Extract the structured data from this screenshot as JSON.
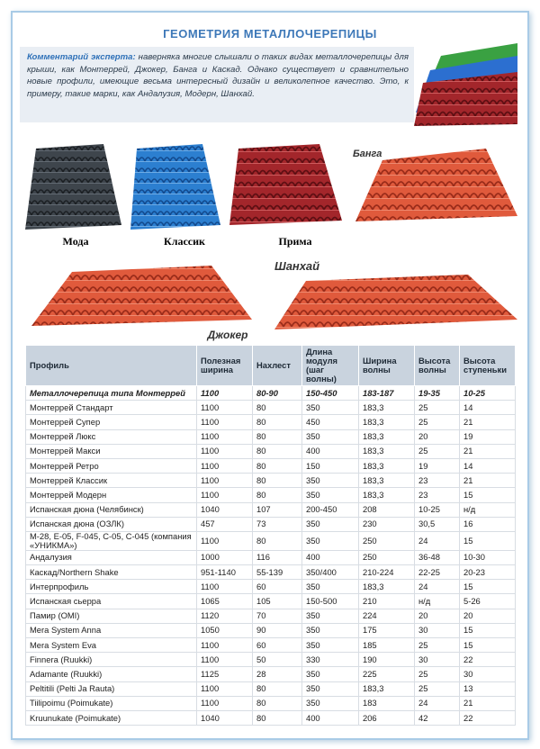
{
  "header": {
    "title": "ГЕОМЕТРИЯ МЕТАЛЛОЧЕРЕПИЦЫ"
  },
  "comment": {
    "label": "Комментарий эксперта:",
    "text": "наверняка многие слышали о таких видах металлочерепицы для крыши, как Монтеррей, Джокер, Банга и Каскад. Однако существует и сравнительно новые профили, имеющие весьма интересный дизайн и великолепное качество. Это, к примеру, такие марки, как Андалузия, Модерн, Шанхай."
  },
  "images": {
    "labels": [
      "Мода",
      "Классик",
      "Прима",
      "Банга",
      "Шанхай",
      "Джокер"
    ]
  },
  "table": {
    "header": [
      "Профиль",
      "Полезная ширина",
      "Нахлест",
      "Длина модуля (шаг волны)",
      "Ширина волны",
      "Высота волны",
      "Высота ступеньки"
    ],
    "rows": [
      [
        "Металлочерепица типа Монтеррей",
        "1100",
        "80-90",
        "150-450",
        "183-187",
        "19-35",
        "10-25"
      ],
      [
        "Монтеррей Стандарт",
        "1100",
        "80",
        "350",
        "183,3",
        "25",
        "14"
      ],
      [
        "Монтеррей Супер",
        "1100",
        "80",
        "450",
        "183,3",
        "25",
        "21"
      ],
      [
        "Монтеррей Люкс",
        "1100",
        "80",
        "350",
        "183,3",
        "20",
        "19"
      ],
      [
        "Монтеррей Макси",
        "1100",
        "80",
        "400",
        "183,3",
        "25",
        "21"
      ],
      [
        "Монтеррей Ретро",
        "1100",
        "80",
        "150",
        "183,3",
        "19",
        "14"
      ],
      [
        "Монтеррей Классик",
        "1100",
        "80",
        "350",
        "183,3",
        "23",
        "21"
      ],
      [
        "Монтеррей Модерн",
        "1100",
        "80",
        "350",
        "183,3",
        "23",
        "15"
      ],
      [
        "Испанская дюна (Челябинск)",
        "1040",
        "107",
        "200-450",
        "208",
        "10-25",
        "н/д"
      ],
      [
        "Испанская дюна (ОЗЛК)",
        "457",
        "73",
        "350",
        "230",
        "30,5",
        "16"
      ],
      [
        "M-28, E-05, F-045, C-05, C-045 (компания «УНИКМА»)",
        "1100",
        "80",
        "350",
        "250",
        "24",
        "15"
      ],
      [
        "Андалузия",
        "1000",
        "116",
        "400",
        "250",
        "36-48",
        "10-30"
      ],
      [
        "Каскад/Northern Shake",
        "951-1140",
        "55-139",
        "350/400",
        "210-224",
        "22-25",
        "20-23"
      ],
      [
        "Интерпрофиль",
        "1100",
        "60",
        "350",
        "183,3",
        "24",
        "15"
      ],
      [
        "Испанская сьерра",
        "1065",
        "105",
        "150-500",
        "210",
        "н/д",
        "5-26"
      ],
      [
        "Памир (OMI)",
        "1120",
        "70",
        "350",
        "224",
        "20",
        "20"
      ],
      [
        "Mera System Anna",
        "1050",
        "90",
        "350",
        "175",
        "30",
        "15"
      ],
      [
        "Mera System Eva",
        "1100",
        "60",
        "350",
        "185",
        "25",
        "15"
      ],
      [
        "Finnera (Ruukki)",
        "1100",
        "50",
        "330",
        "190",
        "30",
        "22"
      ],
      [
        "Adamante (Ruukki)",
        "1125",
        "28",
        "350",
        "225",
        "25",
        "30"
      ],
      [
        "Peltitili (Pelti Ja Rauta)",
        "1100",
        "80",
        "350",
        "183,3",
        "25",
        "13"
      ],
      [
        "Tiilipoimu (Poimukate)",
        "1100",
        "80",
        "350",
        "183",
        "24",
        "21"
      ],
      [
        "Kruunukate (Poimukate)",
        "1040",
        "80",
        "400",
        "206",
        "42",
        "22"
      ]
    ]
  }
}
